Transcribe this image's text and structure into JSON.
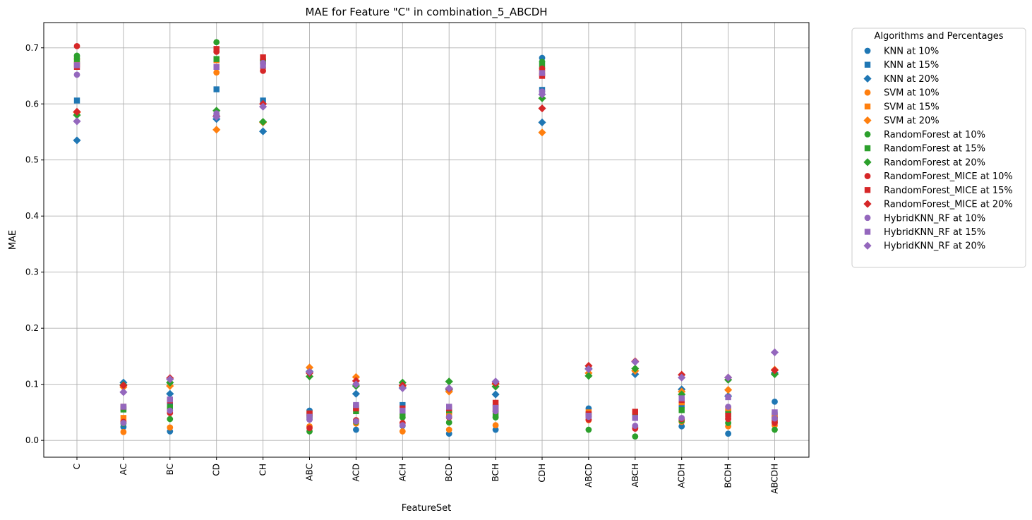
{
  "chart_data": {
    "type": "scatter",
    "title": "MAE for Feature \"C\" in combination_5_ABCDH",
    "xlabel": "FeatureSet",
    "ylabel": "MAE",
    "categories": [
      "C",
      "AC",
      "BC",
      "CD",
      "CH",
      "ABC",
      "ACD",
      "ACH",
      "BCD",
      "BCH",
      "CDH",
      "ABCD",
      "ABCH",
      "ACDH",
      "BCDH",
      "ABCDH"
    ],
    "ylim": [
      -0.03,
      0.745
    ],
    "yticks": [
      "0.0",
      "0.1",
      "0.2",
      "0.3",
      "0.4",
      "0.5",
      "0.6",
      "0.7"
    ],
    "grid": true,
    "legend": {
      "title": "Algorithms and Percentages",
      "placement": "outside-right"
    },
    "colors": {
      "KNN": "#1f77b4",
      "SVM": "#ff7f0e",
      "RandomForest": "#2ca02c",
      "RandomForest_MICE": "#d62728",
      "HybridKNN_RF": "#9467bd"
    },
    "markers": {
      "10%": "circle",
      "15%": "square",
      "20%": "diamond"
    },
    "series": [
      {
        "name": "KNN at 10%",
        "algorithm": "KNN",
        "marker": "circle",
        "values": [
          0.673,
          0.024,
          0.016,
          0.58,
          0.6,
          0.053,
          0.019,
          0.026,
          0.012,
          0.019,
          0.682,
          0.057,
          0.024,
          0.025,
          0.012,
          0.069
        ]
      },
      {
        "name": "KNN at 15%",
        "algorithm": "KNN",
        "marker": "square",
        "values": [
          0.606,
          0.057,
          0.069,
          0.626,
          0.606,
          0.041,
          0.061,
          0.063,
          0.052,
          0.059,
          0.625,
          0.045,
          0.044,
          0.064,
          0.052,
          0.046
        ]
      },
      {
        "name": "KNN at 20%",
        "algorithm": "KNN",
        "marker": "diamond",
        "values": [
          0.535,
          0.103,
          0.083,
          0.573,
          0.551,
          0.123,
          0.083,
          0.094,
          0.09,
          0.082,
          0.567,
          0.128,
          0.118,
          0.091,
          0.079,
          0.12
        ]
      },
      {
        "name": "SVM at 10%",
        "algorithm": "SVM",
        "marker": "circle",
        "values": [
          0.68,
          0.015,
          0.023,
          0.656,
          0.664,
          0.025,
          0.03,
          0.016,
          0.019,
          0.027,
          0.66,
          0.036,
          0.022,
          0.033,
          0.025,
          0.027
        ]
      },
      {
        "name": "SVM at 15%",
        "algorithm": "SVM",
        "marker": "square",
        "values": [
          0.671,
          0.04,
          0.056,
          0.678,
          0.675,
          0.048,
          0.058,
          0.046,
          0.047,
          0.057,
          0.654,
          0.05,
          0.048,
          0.068,
          0.056,
          0.044
        ]
      },
      {
        "name": "SVM at 20%",
        "algorithm": "SVM",
        "marker": "diamond",
        "values": [
          0.585,
          0.095,
          0.097,
          0.554,
          0.567,
          0.13,
          0.113,
          0.097,
          0.087,
          0.1,
          0.549,
          0.12,
          0.124,
          0.087,
          0.09,
          0.126
        ]
      },
      {
        "name": "RandomForest at 10%",
        "algorithm": "RandomForest",
        "marker": "circle",
        "values": [
          0.686,
          0.03,
          0.038,
          0.71,
          0.678,
          0.016,
          0.033,
          0.041,
          0.032,
          0.041,
          0.675,
          0.019,
          0.007,
          0.035,
          0.031,
          0.019
        ]
      },
      {
        "name": "RandomForest at 15%",
        "algorithm": "RandomForest",
        "marker": "square",
        "values": [
          0.68,
          0.055,
          0.059,
          0.68,
          0.676,
          0.045,
          0.052,
          0.049,
          0.054,
          0.046,
          0.668,
          0.046,
          0.042,
          0.054,
          0.047,
          0.036
        ]
      },
      {
        "name": "RandomForest at 20%",
        "algorithm": "RandomForest",
        "marker": "diamond",
        "values": [
          0.58,
          0.099,
          0.103,
          0.588,
          0.568,
          0.114,
          0.097,
          0.103,
          0.105,
          0.096,
          0.61,
          0.115,
          0.128,
          0.082,
          0.108,
          0.118
        ]
      },
      {
        "name": "RandomForest_MICE at 10%",
        "algorithm": "RandomForest_MICE",
        "marker": "circle",
        "values": [
          0.703,
          0.033,
          0.049,
          0.693,
          0.659,
          0.022,
          0.036,
          0.031,
          0.041,
          0.052,
          0.663,
          0.037,
          0.021,
          0.038,
          0.038,
          0.031
        ]
      },
      {
        "name": "RandomForest_MICE at 15%",
        "algorithm": "RandomForest_MICE",
        "marker": "square",
        "values": [
          0.666,
          0.06,
          0.071,
          0.698,
          0.683,
          0.048,
          0.057,
          0.057,
          0.057,
          0.067,
          0.65,
          0.047,
          0.051,
          0.072,
          0.044,
          0.037
        ]
      },
      {
        "name": "RandomForest_MICE at 20%",
        "algorithm": "RandomForest_MICE",
        "marker": "diamond",
        "values": [
          0.586,
          0.098,
          0.111,
          0.578,
          0.6,
          0.12,
          0.106,
          0.098,
          0.092,
          0.102,
          0.592,
          0.133,
          0.141,
          0.117,
          0.112,
          0.125
        ]
      },
      {
        "name": "HybridKNN_RF at 10%",
        "algorithm": "HybridKNN_RF",
        "marker": "circle",
        "values": [
          0.652,
          0.031,
          0.053,
          0.583,
          0.673,
          0.037,
          0.034,
          0.027,
          0.042,
          0.052,
          0.622,
          0.042,
          0.026,
          0.04,
          0.06,
          0.039
        ]
      },
      {
        "name": "HybridKNN_RF at 15%",
        "algorithm": "HybridKNN_RF",
        "marker": "square",
        "values": [
          0.669,
          0.06,
          0.073,
          0.666,
          0.668,
          0.042,
          0.063,
          0.053,
          0.06,
          0.058,
          0.655,
          0.044,
          0.04,
          0.075,
          0.077,
          0.05
        ]
      },
      {
        "name": "HybridKNN_RF at 20%",
        "algorithm": "HybridKNN_RF",
        "marker": "diamond",
        "values": [
          0.569,
          0.086,
          0.109,
          0.577,
          0.595,
          0.122,
          0.1,
          0.093,
          0.093,
          0.105,
          0.617,
          0.127,
          0.14,
          0.112,
          0.112,
          0.157
        ]
      }
    ]
  }
}
